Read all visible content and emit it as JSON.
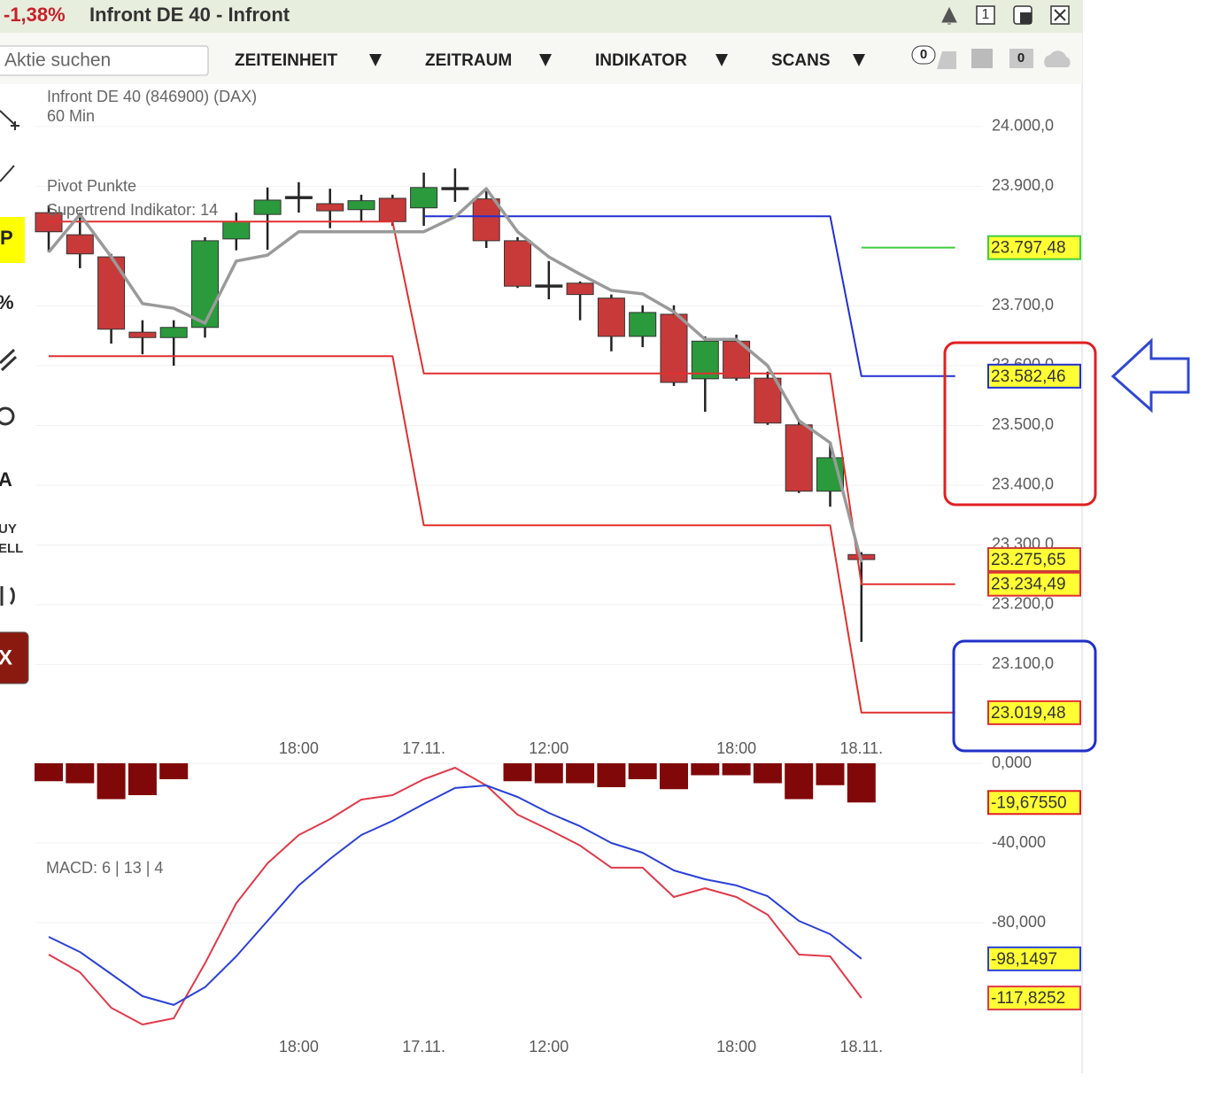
{
  "header": {
    "change": "-1,38%",
    "title": "Infront DE 40 - Infront",
    "buttons": [
      "1"
    ]
  },
  "toolbar": {
    "search_placeholder": "Aktie suchen",
    "menus": [
      "ZEITEINHEIT",
      "ZEITRAUM",
      "INDIKATOR",
      "SCANS"
    ],
    "counters": [
      "0",
      "0"
    ]
  },
  "sidebar": {
    "labels": [
      "P",
      "%",
      "A",
      "UY",
      "ELL",
      "X"
    ]
  },
  "chart_data": [
    {
      "type": "candlestick",
      "title": "Infront DE 40 (846900) (DAX)",
      "subtitle": "60 Min",
      "pivot_name": "Pivot Punkte",
      "categories": [
        null,
        null,
        null,
        null,
        null,
        null,
        null,
        null,
        "18:00",
        null,
        null,
        null,
        "17.11.",
        null,
        null,
        null,
        "12:00",
        null,
        null,
        null,
        null,
        null,
        "18:00",
        null,
        null,
        null,
        "18.11.",
        null,
        null,
        null
      ],
      "open": [
        23856,
        23819,
        23782,
        23656,
        23647,
        23664,
        23812,
        23853,
        23883,
        23871,
        23861,
        23880,
        23864,
        23898,
        23879,
        23809,
        23735,
        23738,
        23713,
        23649,
        23686,
        23578,
        23641,
        23579,
        23501,
        23390,
        23284,
        null,
        null,
        null
      ],
      "high": [
        23868,
        23856,
        23787,
        23676,
        23676,
        23815,
        23856,
        23898,
        23907,
        23896,
        23886,
        23886,
        23923,
        23930,
        23898,
        23815,
        23775,
        23741,
        23719,
        23701,
        23701,
        23649,
        23652,
        23590,
        23508,
        23471,
        23288,
        null,
        null,
        null
      ],
      "low": [
        23790,
        23763,
        23637,
        23619,
        23600,
        23647,
        23793,
        23794,
        23856,
        23830,
        23841,
        23834,
        23834,
        23874,
        23797,
        23730,
        23711,
        23676,
        23624,
        23631,
        23566,
        23523,
        23575,
        23501,
        23387,
        23364,
        23138,
        null,
        null,
        null
      ],
      "close": [
        23824,
        23787,
        23661,
        23647,
        23664,
        23809,
        23841,
        23877,
        23883,
        23859,
        23876,
        23841,
        23898,
        23898,
        23809,
        23733,
        23735,
        23719,
        23649,
        23689,
        23572,
        23641,
        23579,
        23504,
        23390,
        23446,
        23275.65,
        null,
        null,
        null
      ],
      "up_color": "#2a9a3c",
      "down_color": "#c83a3a",
      "neutral_color": "#222222",
      "last_price": {
        "value": 23275.65,
        "label": "23.275,65"
      },
      "series": [
        {
          "name": "Supertrend Indikator: 14",
          "color": "#9a9a9a",
          "values": [
            23790,
            23853,
            23782,
            23704,
            23696,
            23671,
            23775,
            23785,
            23824,
            23824,
            23824,
            23824,
            23824,
            23849,
            23896,
            23824,
            23782,
            23753,
            23726,
            23720,
            23690,
            23644,
            23644,
            23600,
            23508,
            23471,
            23271,
            null,
            null,
            null
          ]
        }
      ],
      "pivots": [
        {
          "color": "#e03030",
          "values": [
            23841,
            23841,
            23841,
            23841,
            23841,
            23841,
            23841,
            23841,
            23841,
            23841,
            23841,
            23841,
            23587,
            23587,
            23587,
            23587,
            23587,
            23587,
            23587,
            23587,
            23587,
            23587,
            23587,
            23587,
            23587,
            23587,
            23234.49,
            23234.49,
            23234.49,
            23234.49
          ],
          "value_labels": [
            null,
            null,
            null,
            null,
            null,
            null,
            null,
            null,
            null,
            null,
            null,
            null,
            null,
            null,
            null,
            null,
            null,
            null,
            null,
            null,
            null,
            null,
            null,
            null,
            null,
            null,
            null,
            null,
            null,
            "23.234,49"
          ]
        },
        {
          "color": "#e03030",
          "values": [
            23616,
            23616,
            23616,
            23616,
            23616,
            23616,
            23616,
            23616,
            23616,
            23616,
            23616,
            23616,
            23333,
            23333,
            23333,
            23333,
            23333,
            23333,
            23333,
            23333,
            23333,
            23333,
            23333,
            23333,
            23333,
            23333,
            23019.48,
            23019.48,
            23019.48,
            23019.48
          ],
          "value_labels": [
            null,
            null,
            null,
            null,
            null,
            null,
            null,
            null,
            null,
            null,
            null,
            null,
            null,
            null,
            null,
            null,
            null,
            null,
            null,
            null,
            null,
            null,
            null,
            null,
            null,
            null,
            null,
            null,
            null,
            "23.019,48"
          ]
        },
        {
          "color": "#2030d0",
          "values": [
            null,
            null,
            null,
            null,
            null,
            null,
            null,
            null,
            null,
            null,
            null,
            null,
            23850,
            23850,
            23850,
            23850,
            23850,
            23850,
            23850,
            23850,
            23850,
            23850,
            23850,
            23850,
            23850,
            23850,
            23582.46,
            23582.46,
            23582.46,
            23582.46
          ],
          "value_labels": [
            null,
            null,
            null,
            null,
            null,
            null,
            null,
            null,
            null,
            null,
            null,
            null,
            null,
            null,
            null,
            null,
            null,
            null,
            null,
            null,
            null,
            null,
            null,
            null,
            null,
            null,
            null,
            null,
            null,
            "23.582,46"
          ]
        },
        {
          "color": "#40cc40",
          "values": [
            null,
            null,
            null,
            null,
            null,
            null,
            null,
            null,
            null,
            null,
            null,
            null,
            null,
            null,
            null,
            null,
            null,
            null,
            null,
            null,
            null,
            null,
            null,
            null,
            null,
            null,
            23797.48,
            23797.48,
            23797.48,
            23797.48
          ],
          "value_labels": [
            null,
            null,
            null,
            null,
            null,
            null,
            null,
            null,
            null,
            null,
            null,
            null,
            null,
            null,
            null,
            null,
            null,
            null,
            null,
            null,
            null,
            null,
            null,
            null,
            null,
            null,
            null,
            null,
            null,
            "23.797,48"
          ]
        }
      ],
      "ylim": [
        22980,
        24071
      ],
      "yticks": [
        {
          "value": 24000,
          "label": "24.000,0"
        },
        {
          "value": 23900,
          "label": "23.900,0"
        },
        {
          "value": 23700,
          "label": "23.700,0"
        },
        {
          "value": 23600,
          "label": "23.600,0"
        },
        {
          "value": 23500,
          "label": "23.500,0"
        },
        {
          "value": 23400,
          "label": "23.400,0"
        },
        {
          "value": 23300,
          "label": "23.300,0"
        },
        {
          "value": 23200,
          "label": "23.200,0"
        },
        {
          "value": 23100,
          "label": "23.100,0"
        }
      ],
      "grid": true
    },
    {
      "type": "macd",
      "title": "MACD: 6 | 13 | 4",
      "categories": [
        null,
        null,
        null,
        null,
        null,
        null,
        null,
        null,
        "18:00",
        null,
        null,
        null,
        "17.11.",
        null,
        null,
        null,
        "12:00",
        null,
        null,
        null,
        null,
        null,
        "18:00",
        null,
        null,
        null,
        "18.11.",
        null,
        null,
        null
      ],
      "histogram": {
        "color": "#800808",
        "values": [
          -9,
          -10,
          -18,
          -16,
          -8,
          null,
          null,
          null,
          null,
          null,
          null,
          null,
          null,
          null,
          null,
          -9,
          -10,
          -10,
          -12,
          -8,
          -13,
          -6,
          -6,
          -10,
          -18,
          -11,
          -19.6755,
          null,
          null,
          null
        ],
        "value_labels": [
          null,
          null,
          null,
          null,
          null,
          null,
          null,
          null,
          null,
          null,
          null,
          null,
          null,
          null,
          null,
          null,
          null,
          null,
          null,
          null,
          null,
          null,
          null,
          null,
          null,
          null,
          "-19,67550",
          null,
          null,
          null
        ]
      },
      "series": [
        {
          "color": "#e03a4a",
          "values": [
            -96,
            -104.9,
            -122.7,
            -131.1,
            -128,
            -100.4,
            -70.2,
            -50.2,
            -36,
            -28,
            -18.2,
            -16,
            -8,
            -2.2,
            -11.1,
            -25.8,
            -33.3,
            -41.3,
            -52.4,
            -52.4,
            -67.1,
            -62.7,
            -67.1,
            -76,
            -96,
            -96.9,
            -117.8252,
            null,
            null,
            null
          ],
          "value_labels": [
            null,
            null,
            null,
            null,
            null,
            null,
            null,
            null,
            null,
            null,
            null,
            null,
            null,
            null,
            null,
            null,
            null,
            null,
            null,
            null,
            null,
            null,
            null,
            null,
            null,
            null,
            "-117,8252",
            null,
            null,
            null
          ]
        },
        {
          "color": "#2a40d8",
          "values": [
            -87.1,
            -94.7,
            -105.8,
            -116.9,
            -121.3,
            -112.4,
            -96.9,
            -79.1,
            -61.3,
            -48,
            -36,
            -28.9,
            -20.4,
            -12.4,
            -11.1,
            -16.9,
            -24.9,
            -31.6,
            -40,
            -44.9,
            -53.8,
            -58.2,
            -61.3,
            -66.7,
            -79.1,
            -85.8,
            -98.1497,
            null,
            null,
            null
          ],
          "value_labels": [
            null,
            null,
            null,
            null,
            null,
            null,
            null,
            null,
            null,
            null,
            null,
            null,
            null,
            null,
            null,
            null,
            null,
            null,
            null,
            null,
            null,
            null,
            null,
            null,
            null,
            null,
            "-98,1497",
            null,
            null,
            null
          ]
        }
      ],
      "ylim": [
        -136,
        2
      ],
      "yticks": [
        {
          "value": 0,
          "label": "0,000"
        },
        {
          "value": -40,
          "label": "-40,000"
        },
        {
          "value": -80,
          "label": "-80,000"
        }
      ],
      "grid": true
    }
  ]
}
